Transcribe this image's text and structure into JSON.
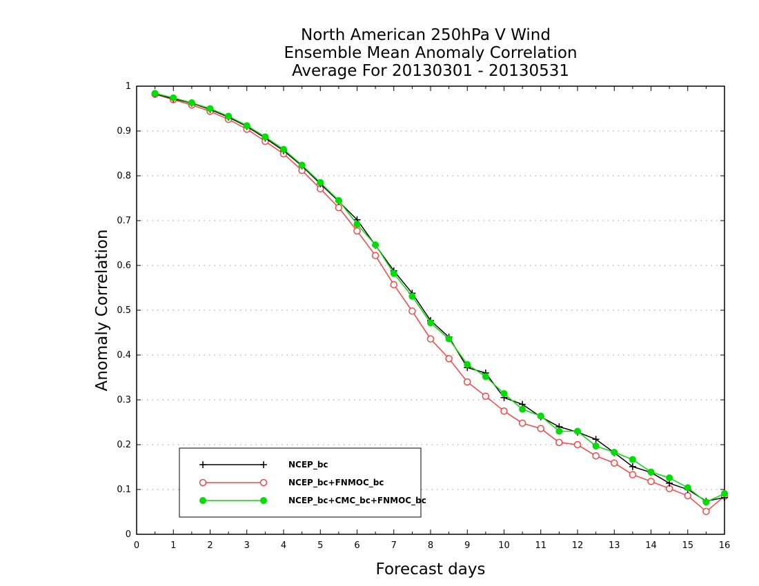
{
  "chart_data": {
    "type": "line",
    "title_lines": [
      "North American 250hPa V Wind",
      "Ensemble Mean Anomaly Correlation",
      "Average For 20130301 - 20130531"
    ],
    "xlabel": "Forecast days",
    "ylabel": "Anomaly Correlation",
    "xlim": [
      0,
      16
    ],
    "ylim": [
      0,
      1
    ],
    "xticks": [
      "0",
      "1",
      "2",
      "3",
      "4",
      "5",
      "6",
      "7",
      "8",
      "9",
      "10",
      "11",
      "12",
      "13",
      "14",
      "15",
      "16"
    ],
    "yticks": [
      "0",
      "0.1",
      "0.2",
      "0.3",
      "0.4",
      "0.5",
      "0.6",
      "0.7",
      "0.8",
      "0.9",
      "1"
    ],
    "grid": "horizontal-dotted",
    "legend_position": "bottom-left",
    "x": [
      0.5,
      1,
      1.5,
      2,
      2.5,
      3,
      3.5,
      4,
      4.5,
      5,
      5.5,
      6,
      6.5,
      7,
      7.5,
      8,
      8.5,
      9,
      9.5,
      10,
      10.5,
      11,
      11.5,
      12,
      12.5,
      13,
      13.5,
      14,
      14.5,
      15,
      15.5,
      16
    ],
    "series": [
      {
        "name": "NCEP_bc",
        "color": "#000000",
        "marker": "plus",
        "values": [
          0.983,
          0.972,
          0.962,
          0.948,
          0.931,
          0.91,
          0.884,
          0.856,
          0.822,
          0.782,
          0.743,
          0.702,
          0.645,
          0.588,
          0.538,
          0.477,
          0.44,
          0.372,
          0.36,
          0.305,
          0.29,
          0.262,
          0.24,
          0.228,
          0.212,
          0.182,
          0.151,
          0.138,
          0.114,
          0.1,
          0.074,
          0.082
        ]
      },
      {
        "name": "NCEP_bc+FNMOC_bc",
        "color": "#ff4040",
        "marker": "open-circle",
        "values": [
          0.982,
          0.97,
          0.958,
          0.944,
          0.926,
          0.904,
          0.877,
          0.849,
          0.812,
          0.771,
          0.729,
          0.677,
          0.622,
          0.557,
          0.498,
          0.436,
          0.392,
          0.34,
          0.308,
          0.275,
          0.248,
          0.236,
          0.205,
          0.2,
          0.175,
          0.159,
          0.133,
          0.118,
          0.102,
          0.086,
          0.051,
          0.085
        ]
      },
      {
        "name": "NCEP_bc+CMC_bc+FNMOC_bc",
        "color": "#00dd00",
        "marker": "filled-circle",
        "values": [
          0.984,
          0.974,
          0.963,
          0.95,
          0.933,
          0.912,
          0.887,
          0.859,
          0.824,
          0.785,
          0.745,
          0.692,
          0.646,
          0.582,
          0.531,
          0.472,
          0.436,
          0.379,
          0.352,
          0.314,
          0.279,
          0.264,
          0.23,
          0.23,
          0.197,
          0.183,
          0.167,
          0.139,
          0.126,
          0.104,
          0.072,
          0.091
        ]
      }
    ]
  }
}
